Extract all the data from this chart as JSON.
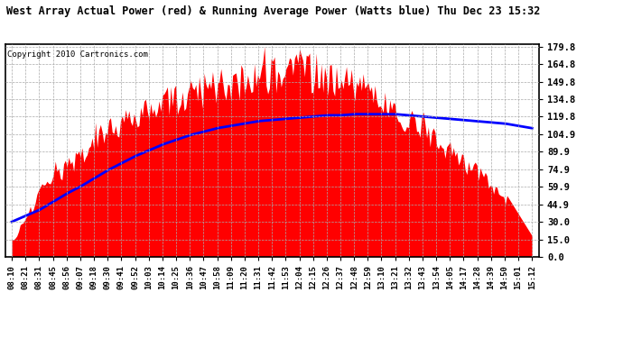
{
  "title": "West Array Actual Power (red) & Running Average Power (Watts blue) Thu Dec 23 15:32",
  "copyright": "Copyright 2010 Cartronics.com",
  "yticks": [
    0.0,
    15.0,
    30.0,
    44.9,
    59.9,
    74.9,
    89.9,
    104.9,
    119.8,
    134.8,
    149.8,
    164.8,
    179.8
  ],
  "ylim": [
    0,
    182
  ],
  "background_color": "#ffffff",
  "red_color": "#ff0000",
  "blue_color": "#0000ff",
  "xtick_labels": [
    "08:10",
    "08:21",
    "08:31",
    "08:45",
    "08:56",
    "09:07",
    "09:18",
    "09:30",
    "09:41",
    "09:52",
    "10:03",
    "10:14",
    "10:25",
    "10:36",
    "10:47",
    "10:58",
    "11:09",
    "11:20",
    "11:31",
    "11:42",
    "11:53",
    "12:04",
    "12:15",
    "12:26",
    "12:37",
    "12:48",
    "12:59",
    "13:10",
    "13:21",
    "13:32",
    "13:43",
    "13:54",
    "14:05",
    "14:17",
    "14:28",
    "14:39",
    "14:50",
    "15:01",
    "15:12"
  ],
  "red_envelope": [
    30,
    45,
    60,
    75,
    85,
    95,
    110,
    120,
    125,
    130,
    138,
    145,
    150,
    155,
    158,
    162,
    165,
    168,
    170,
    172,
    175,
    178,
    175,
    172,
    170,
    165,
    160,
    150,
    140,
    130,
    120,
    110,
    100,
    90,
    80,
    70,
    55,
    40,
    25
  ],
  "red_floor": [
    15,
    15,
    15,
    15,
    15,
    15,
    15,
    15,
    15,
    15,
    15,
    15,
    15,
    15,
    15,
    15,
    15,
    15,
    15,
    15,
    15,
    15,
    15,
    15,
    15,
    15,
    15,
    15,
    15,
    15,
    15,
    15,
    15,
    15,
    15,
    15,
    15,
    15,
    15
  ],
  "blue_values": [
    30,
    35,
    40,
    47,
    54,
    60,
    67,
    74,
    80,
    86,
    91,
    96,
    100,
    104,
    107,
    110,
    112,
    114,
    116,
    117,
    118,
    119,
    120,
    121,
    121,
    122,
    122,
    122,
    122,
    121,
    120,
    119,
    118,
    117,
    116,
    115,
    114,
    112,
    110
  ]
}
